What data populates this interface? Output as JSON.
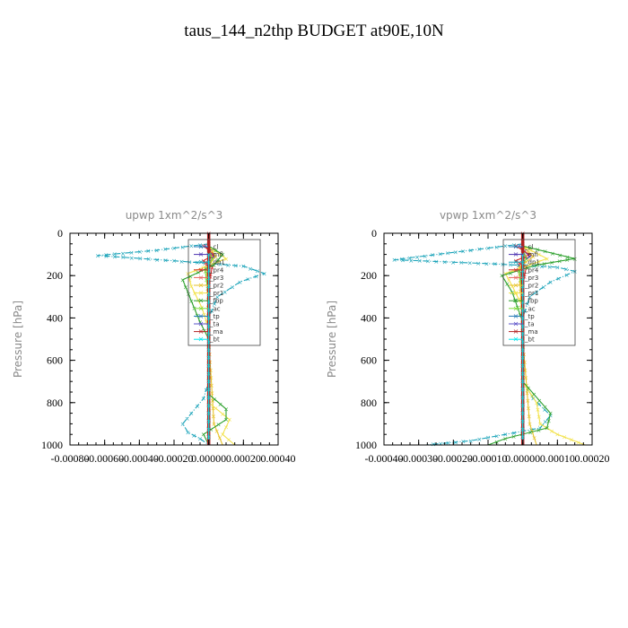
{
  "title": "taus_144_n2thp  BUDGET at90E,10N",
  "chart_data": [
    {
      "type": "line",
      "title": "upwp   1xm^2/s^3",
      "ylabel": "Pressure [hPa]",
      "xlim": [
        -0.0008,
        0.0004
      ],
      "ylim": [
        1000,
        0
      ],
      "xticks": [
        "-0.00080",
        "-0.00060",
        "-0.00040",
        "-0.00020",
        "0.00000",
        "0.00020",
        "0.00040"
      ],
      "yticks": [
        "0",
        "200",
        "400",
        "600",
        "800",
        "1000"
      ],
      "legend": "top-right",
      "series": [
        {
          "name": "_cl",
          "color": "#1f77b4",
          "x": [
            0,
            0
          ],
          "y": [
            50,
            1000
          ]
        },
        {
          "name": "_mfl",
          "color": "#4a2fb0",
          "x": [
            -2e-05,
            3e-05,
            -1e-05,
            0,
            0,
            0
          ],
          "y": [
            60,
            110,
            150,
            300,
            600,
            1000
          ]
        },
        {
          "name": "_dp1",
          "color": "#17a2b8",
          "x": [
            0.0,
            -0.0003,
            -0.00064,
            -0.0002,
            0.0002,
            0.00032,
            0.00018,
            5e-05,
            0,
            0,
            -3e-05,
            -0.0001,
            -0.00015,
            -0.00012,
            -5e-05,
            0
          ],
          "y": [
            50,
            80,
            105,
            130,
            155,
            190,
            230,
            300,
            400,
            700,
            780,
            850,
            900,
            940,
            970,
            1000
          ]
        },
        {
          "name": "_pr4",
          "color": "#d62728",
          "x": [
            -3e-05,
            3e-05,
            -3e-05,
            2e-05,
            0,
            0
          ],
          "y": [
            60,
            100,
            130,
            160,
            250,
            1000
          ]
        },
        {
          "name": "_pr3",
          "color": "#e8645a",
          "x": [
            0,
            2e-05,
            -2e-05,
            0,
            0
          ],
          "y": [
            80,
            110,
            140,
            200,
            1000
          ]
        },
        {
          "name": "_pr2",
          "color": "#e6c229",
          "x": [
            0,
            4e-05,
            -1e-05,
            0,
            3e-05,
            8e-05
          ],
          "y": [
            60,
            110,
            160,
            500,
            900,
            1000
          ]
        },
        {
          "name": "_pr1",
          "color": "#f2e24b",
          "x": [
            0,
            0.0001,
            -0.00012,
            -0.0001,
            -4e-05,
            0,
            0,
            0.00012,
            8e-05,
            0.00015
          ],
          "y": [
            60,
            120,
            190,
            250,
            350,
            450,
            800,
            880,
            950,
            1000
          ]
        },
        {
          "name": "_fbp",
          "color": "#2ca02c",
          "x": [
            0,
            8e-05,
            3e-05,
            -0.00015,
            -0.0001,
            -5e-05,
            0,
            0,
            0.0001,
            0.0001,
            -3e-05,
            0
          ],
          "y": [
            60,
            100,
            150,
            220,
            320,
            420,
            500,
            760,
            830,
            880,
            950,
            1000
          ]
        },
        {
          "name": "_ac",
          "color": "#7fdc3c",
          "x": [
            0,
            2e-05,
            -2e-05,
            0,
            0
          ],
          "y": [
            70,
            120,
            180,
            300,
            1000
          ]
        },
        {
          "name": "_tp",
          "color": "#1f77b4",
          "x": [
            0,
            0
          ],
          "y": [
            100,
            1000
          ]
        },
        {
          "name": "_ta",
          "color": "#5a50c8",
          "x": [
            0,
            0
          ],
          "y": [
            100,
            1000
          ]
        },
        {
          "name": "_ma",
          "color": "#b22222",
          "x": [
            0,
            0
          ],
          "y": [
            0,
            1000
          ]
        },
        {
          "name": "_bt",
          "color": "#00e5ee",
          "x": [
            0,
            0
          ],
          "y": [
            100,
            1000
          ]
        }
      ]
    },
    {
      "type": "line",
      "title": "vpwp   1xm^2/s^3",
      "ylabel": "Pressure [hPa]",
      "xlim": [
        -0.0004,
        0.0002
      ],
      "ylim": [
        1000,
        0
      ],
      "xticks": [
        "-0.00040",
        "-0.00030",
        "-0.00020",
        "-0.00010",
        "0.00000",
        "0.00010",
        "0.00020"
      ],
      "yticks": [
        "0",
        "200",
        "400",
        "600",
        "800",
        "1000"
      ],
      "legend": "top-right",
      "series": [
        {
          "name": "_cl",
          "color": "#1f77b4",
          "x": [
            0,
            0
          ],
          "y": [
            50,
            1000
          ]
        },
        {
          "name": "_mfl",
          "color": "#4a2fb0",
          "x": [
            -1e-05,
            2e-05,
            -1e-05,
            0,
            0,
            0
          ],
          "y": [
            60,
            110,
            150,
            300,
            600,
            1000
          ]
        },
        {
          "name": "_dp1",
          "color": "#17a2b8",
          "x": [
            0,
            -0.00015,
            -0.00037,
            -8e-05,
            0.0001,
            0.00015,
            8e-05,
            2e-05,
            0,
            0,
            3e-05,
            8e-05,
            5e-05,
            -5e-05,
            -0.00015,
            -0.00028
          ],
          "y": [
            50,
            80,
            125,
            145,
            160,
            180,
            230,
            300,
            400,
            700,
            780,
            860,
            920,
            950,
            980,
            1000
          ]
        },
        {
          "name": "_pr4",
          "color": "#d62728",
          "x": [
            -2e-05,
            2e-05,
            -2e-05,
            1e-05,
            0,
            0
          ],
          "y": [
            60,
            100,
            130,
            160,
            250,
            1000
          ]
        },
        {
          "name": "_pr3",
          "color": "#e8645a",
          "x": [
            0,
            1e-05,
            -1e-05,
            0,
            0
          ],
          "y": [
            80,
            110,
            140,
            200,
            1000
          ]
        },
        {
          "name": "_pr2",
          "color": "#e6c229",
          "x": [
            0,
            3e-05,
            -1e-05,
            0,
            2e-05,
            4e-05
          ],
          "y": [
            60,
            110,
            160,
            500,
            900,
            1000
          ]
        },
        {
          "name": "_pr1",
          "color": "#f2e24b",
          "x": [
            0,
            7e-05,
            -5e-05,
            -3e-05,
            0,
            0,
            4e-05,
            5e-05,
            0.0001,
            0.00018
          ],
          "y": [
            60,
            120,
            190,
            250,
            350,
            700,
            800,
            900,
            950,
            1000
          ]
        },
        {
          "name": "_fbp",
          "color": "#2ca02c",
          "x": [
            0,
            0.00015,
            4e-05,
            -6e-05,
            -3e-05,
            0,
            0,
            8e-05,
            7e-05,
            -5e-05,
            -0.0001
          ],
          "y": [
            60,
            120,
            150,
            200,
            280,
            420,
            700,
            850,
            920,
            970,
            1000
          ]
        },
        {
          "name": "_ac",
          "color": "#7fdc3c",
          "x": [
            0,
            1e-05,
            -1e-05,
            0,
            0
          ],
          "y": [
            70,
            120,
            180,
            300,
            1000
          ]
        },
        {
          "name": "_tp",
          "color": "#1f77b4",
          "x": [
            0,
            0
          ],
          "y": [
            100,
            1000
          ]
        },
        {
          "name": "_ta",
          "color": "#5a50c8",
          "x": [
            0,
            0
          ],
          "y": [
            100,
            1000
          ]
        },
        {
          "name": "_ma",
          "color": "#b22222",
          "x": [
            0,
            0
          ],
          "y": [
            0,
            1000
          ]
        },
        {
          "name": "_bt",
          "color": "#00e5ee",
          "x": [
            0,
            0
          ],
          "y": [
            100,
            1000
          ]
        }
      ]
    }
  ]
}
